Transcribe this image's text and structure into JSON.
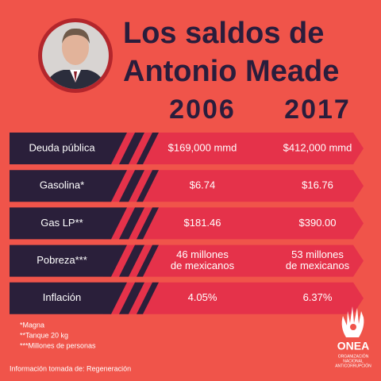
{
  "title": [
    "Los saldos de",
    "Antonio Meade"
  ],
  "table": {
    "columns": [
      "2006",
      "2017"
    ],
    "rows": [
      [
        "Deuda pública",
        "$169,000 mmd",
        "$412,000 mmd"
      ],
      [
        "Gasolina*",
        "$6.74",
        "$16.76"
      ],
      [
        "Gas LP**",
        "$181.46",
        "$390.00"
      ],
      [
        "Pobreza***",
        [
          "46 millones",
          "de mexicanos"
        ],
        [
          "53 millones",
          "de mexicanos"
        ]
      ],
      [
        "Inflación",
        "4.05%",
        "6.37%"
      ]
    ]
  },
  "footnotes": [
    "*Magna",
    "**Tanque 20 kg",
    "***Millones de personas"
  ],
  "source": "Información tomada de: Regeneración",
  "logo": {
    "name": "ONEA",
    "subtitle": [
      "ORGANIZACIÓN",
      "NACIONAL",
      "ANTICORRUPCIÓN"
    ]
  }
}
